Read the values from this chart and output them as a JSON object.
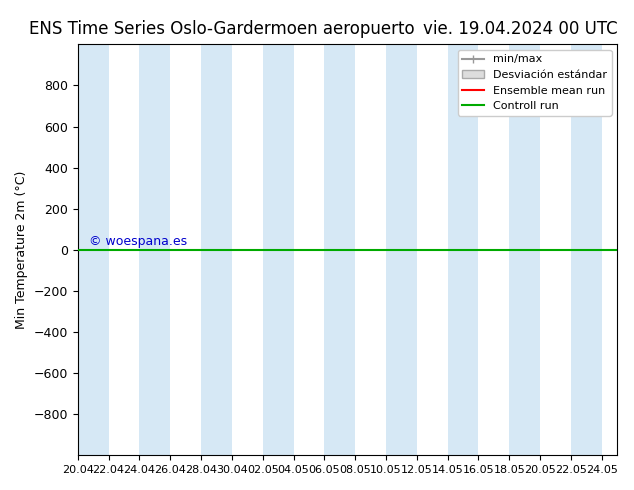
{
  "title_left": "ENS Time Series Oslo-Gardermoen aeropuerto",
  "title_right": "vie. 19.04.2024 00 UTC",
  "ylabel": "Min Temperature 2m (°C)",
  "ylim": [
    -1000,
    1000
  ],
  "yticks": [
    -800,
    -600,
    -400,
    -200,
    0,
    200,
    400,
    600,
    800
  ],
  "xlim_start": "2024-04-20",
  "xlim_end": "2024-05-25",
  "xtick_labels": [
    "20.04",
    "22.04",
    "24.04",
    "26.04",
    "28.04",
    "30.04",
    "02.05",
    "04.05",
    "06.05",
    "08.05",
    "10.05",
    "12.05",
    "14.05",
    "16.05",
    "18.05",
    "20.05",
    "22.05",
    "24.05"
  ],
  "green_line_y": 0,
  "watermark": "© woespana.es",
  "watermark_color": "#0000cc",
  "background_color": "#ffffff",
  "plot_bg_color": "#ffffff",
  "band_color": "#d6e8f5",
  "legend_labels": [
    "min/max",
    "Desviación estándar",
    "Ensemble mean run",
    "Controll run"
  ],
  "legend_colors": [
    "#aaaaaa",
    "#cccccc",
    "#ff0000",
    "#00aa00"
  ],
  "green_line_color": "#00aa00",
  "title_fontsize": 12,
  "axis_fontsize": 10
}
